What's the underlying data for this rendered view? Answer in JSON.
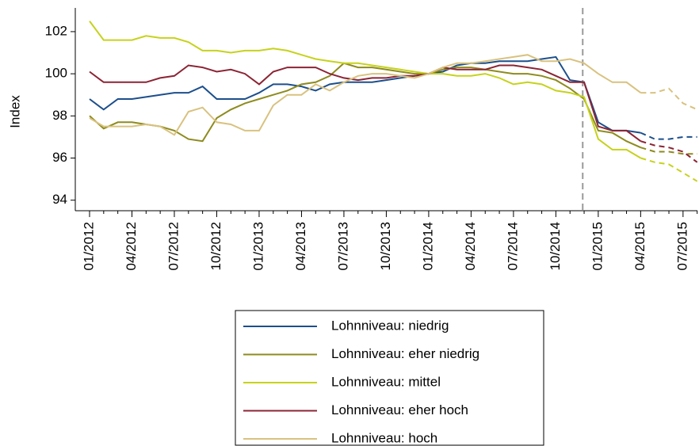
{
  "chart_data": {
    "type": "line",
    "y_label": "Index",
    "categories": [
      "01/2012",
      null,
      null,
      "04/2012",
      null,
      null,
      "07/2012",
      null,
      null,
      "10/2012",
      null,
      null,
      "01/2013",
      null,
      null,
      "04/2013",
      null,
      null,
      "07/2013",
      null,
      null,
      "10/2013",
      null,
      null,
      "01/2014",
      null,
      null,
      "04/2014",
      null,
      null,
      "07/2014",
      null,
      null,
      "10/2014",
      null,
      null,
      "01/2015",
      null,
      null,
      "04/2015",
      null,
      null,
      "07/2015",
      null
    ],
    "series": [
      {
        "name": "Lohnniveau: niedrig",
        "color": "#1c4f8c",
        "values": [
          98.8,
          98.3,
          98.8,
          98.8,
          98.9,
          99.0,
          99.1,
          99.1,
          99.4,
          98.8,
          98.8,
          98.8,
          99.1,
          99.5,
          99.5,
          99.4,
          99.2,
          99.5,
          99.6,
          99.6,
          99.6,
          99.7,
          99.8,
          99.9,
          100.0,
          100.1,
          100.4,
          100.5,
          100.5,
          100.6,
          100.6,
          100.6,
          100.7,
          100.8,
          99.7,
          99.6,
          97.7,
          97.3,
          97.3,
          97.2,
          96.9,
          96.9,
          97.0,
          97.0
        ]
      },
      {
        "name": "Lohnniveau: eher niedrig",
        "color": "#8e8b1e",
        "values": [
          98.0,
          97.4,
          97.7,
          97.7,
          97.6,
          97.5,
          97.3,
          96.9,
          96.8,
          97.9,
          98.3,
          98.6,
          98.8,
          99.0,
          99.2,
          99.5,
          99.6,
          99.9,
          100.5,
          100.3,
          100.3,
          100.2,
          100.1,
          100.0,
          100.0,
          100.2,
          100.3,
          100.3,
          100.2,
          100.1,
          100.0,
          100.0,
          99.9,
          99.7,
          99.3,
          98.8,
          97.3,
          97.2,
          96.8,
          96.5,
          96.3,
          96.3,
          96.2,
          96.2
        ]
      },
      {
        "name": "Lohnniveau: mittel",
        "color": "#c6d21c",
        "values": [
          102.5,
          101.6,
          101.6,
          101.6,
          101.8,
          101.7,
          101.7,
          101.5,
          101.1,
          101.1,
          101.0,
          101.1,
          101.1,
          101.2,
          101.1,
          100.9,
          100.7,
          100.6,
          100.5,
          100.5,
          100.4,
          100.3,
          100.2,
          100.1,
          100.0,
          100.0,
          99.9,
          99.9,
          100.0,
          99.8,
          99.5,
          99.6,
          99.5,
          99.2,
          99.1,
          98.9,
          96.9,
          96.4,
          96.4,
          96.0,
          95.8,
          95.7,
          95.3,
          94.9
        ]
      },
      {
        "name": "Lohnniveau: eher hoch",
        "color": "#8b2434",
        "values": [
          100.1,
          99.6,
          99.6,
          99.6,
          99.6,
          99.8,
          99.9,
          100.4,
          100.3,
          100.1,
          100.2,
          100.0,
          99.5,
          100.1,
          100.3,
          100.3,
          100.3,
          100.0,
          99.8,
          99.7,
          99.8,
          99.8,
          99.9,
          99.9,
          100.0,
          100.3,
          100.2,
          100.2,
          100.2,
          100.4,
          100.4,
          100.3,
          100.2,
          99.9,
          99.6,
          99.6,
          97.5,
          97.3,
          97.3,
          96.8,
          96.6,
          96.5,
          96.3,
          95.8
        ]
      },
      {
        "name": "Lohnniveau: hoch",
        "color": "#d9c27f",
        "values": [
          97.9,
          97.5,
          97.5,
          97.5,
          97.6,
          97.5,
          97.1,
          98.2,
          98.4,
          97.7,
          97.6,
          97.3,
          97.3,
          98.5,
          99.0,
          99.0,
          99.5,
          99.2,
          99.6,
          99.9,
          100.0,
          100.0,
          99.9,
          99.8,
          100.0,
          100.3,
          100.5,
          100.5,
          100.6,
          100.7,
          100.8,
          100.9,
          100.6,
          100.6,
          100.7,
          100.5,
          100.0,
          99.6,
          99.6,
          99.1,
          99.1,
          99.3,
          98.6,
          98.3
        ]
      }
    ],
    "dashed_from_index": 39,
    "reference_line": {
      "at_index": 34.9,
      "color": "#999999"
    },
    "ylim": [
      93.5,
      102.9
    ],
    "yticks": [
      94,
      96,
      98,
      100,
      102
    ],
    "grid": false,
    "legend": "bottom"
  }
}
